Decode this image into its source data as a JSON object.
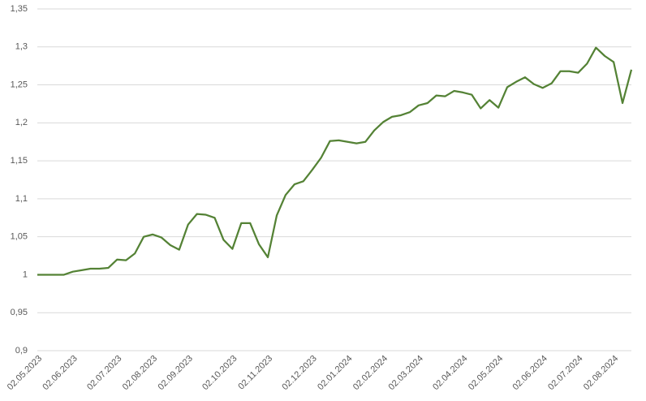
{
  "chart_data": {
    "type": "line",
    "categories": [
      "02.05.2023",
      null,
      null,
      null,
      "02.06.2023",
      null,
      null,
      null,
      null,
      "02.07.2023",
      null,
      null,
      null,
      "02.08.2023",
      null,
      null,
      null,
      "02.09.2023",
      null,
      null,
      null,
      null,
      "02.10.2023",
      null,
      null,
      null,
      "02.11.2023",
      null,
      null,
      null,
      null,
      "02.12.2023",
      null,
      null,
      null,
      "02.01.2024",
      null,
      null,
      null,
      "02.02.2024",
      null,
      null,
      null,
      "02.03.2024",
      null,
      null,
      null,
      null,
      "02.04.2024",
      null,
      null,
      null,
      "02.05.2024",
      null,
      null,
      null,
      null,
      "02.06.2024",
      null,
      null,
      null,
      "02.07.2024",
      null,
      null,
      null,
      "02.08.2024",
      null,
      null
    ],
    "series": [
      {
        "color": "#548235",
        "values": [
          1.0,
          1.0,
          1.0,
          1.0,
          1.004,
          1.006,
          1.008,
          1.008,
          1.009,
          1.02,
          1.019,
          1.028,
          1.05,
          1.053,
          1.049,
          1.039,
          1.033,
          1.066,
          1.08,
          1.079,
          1.075,
          1.046,
          1.034,
          1.068,
          1.068,
          1.04,
          1.023,
          1.078,
          1.105,
          1.119,
          1.123,
          1.138,
          1.154,
          1.176,
          1.177,
          1.175,
          1.173,
          1.175,
          1.19,
          1.201,
          1.208,
          1.21,
          1.214,
          1.223,
          1.226,
          1.236,
          1.235,
          1.242,
          1.24,
          1.237,
          1.219,
          1.23,
          1.22,
          1.247,
          1.254,
          1.26,
          1.251,
          1.246,
          1.252,
          1.268,
          1.268,
          1.266,
          1.278,
          1.299,
          1.288,
          1.28,
          1.226,
          1.27
        ]
      }
    ],
    "ylim": [
      0.9,
      1.35
    ],
    "yticks": [
      {
        "value": 0.9,
        "label": "0,9"
      },
      {
        "value": 0.95,
        "label": "0,95"
      },
      1,
      {
        "value": 1.05,
        "label": "1,05"
      },
      {
        "value": 1.1,
        "label": "1,1"
      },
      {
        "value": 1.15,
        "label": "1,15"
      },
      {
        "value": 1.2,
        "label": "1,2"
      },
      {
        "value": 1.25,
        "label": "1,25"
      },
      {
        "value": 1.3,
        "label": "1,3"
      },
      {
        "value": 1.35,
        "label": "1,35"
      }
    ],
    "grid": true
  }
}
